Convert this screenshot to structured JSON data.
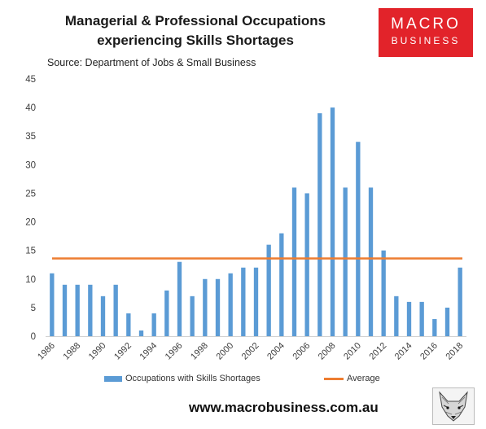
{
  "header": {
    "title_line1": "Managerial & Professional Occupations",
    "title_line2": "experiencing Skills Shortages",
    "source": "Source: Department of Jobs & Small Business"
  },
  "logo": {
    "line1": "MACRO",
    "line2": "BUSINESS",
    "color": "#e2232a"
  },
  "footer": {
    "url": "www.macrobusiness.com.au",
    "mascot_icon": "fox-sketch-icon"
  },
  "chart_data": {
    "type": "bar",
    "title": "Managerial & Professional Occupations experiencing Skills Shortages",
    "x": [
      "1986",
      "1987",
      "1988",
      "1989",
      "1990",
      "1991",
      "1992",
      "1993",
      "1994",
      "1995",
      "1996",
      "1997",
      "1998",
      "1999",
      "2000",
      "2001",
      "2002",
      "2003",
      "2004",
      "2005",
      "2006",
      "2007",
      "2008",
      "2009",
      "2010",
      "2011",
      "2012",
      "2013",
      "2014",
      "2015",
      "2016",
      "2017",
      "2018"
    ],
    "tick_labels": [
      "1986",
      "1988",
      "1990",
      "1992",
      "1994",
      "1996",
      "1998",
      "2000",
      "2002",
      "2004",
      "2006",
      "2008",
      "2010",
      "2012",
      "2014",
      "2016",
      "2018"
    ],
    "series": [
      {
        "name": "Occupations with Skills Shortages",
        "type": "bar",
        "color": "#5b9bd5",
        "values": [
          11,
          9,
          9,
          9,
          7,
          9,
          4,
          1,
          4,
          8,
          13,
          7,
          10,
          10,
          11,
          12,
          12,
          16,
          18,
          26,
          25,
          39,
          40,
          26,
          34,
          26,
          15,
          7,
          6,
          6,
          3,
          5,
          12
        ]
      },
      {
        "name": "Average",
        "type": "line",
        "color": "#ed7d31",
        "value": 13.6
      }
    ],
    "ylim": [
      0,
      45
    ],
    "yticks": [
      0,
      5,
      10,
      15,
      20,
      25,
      30,
      35,
      40,
      45
    ],
    "grid": false,
    "legend": "bottom"
  }
}
